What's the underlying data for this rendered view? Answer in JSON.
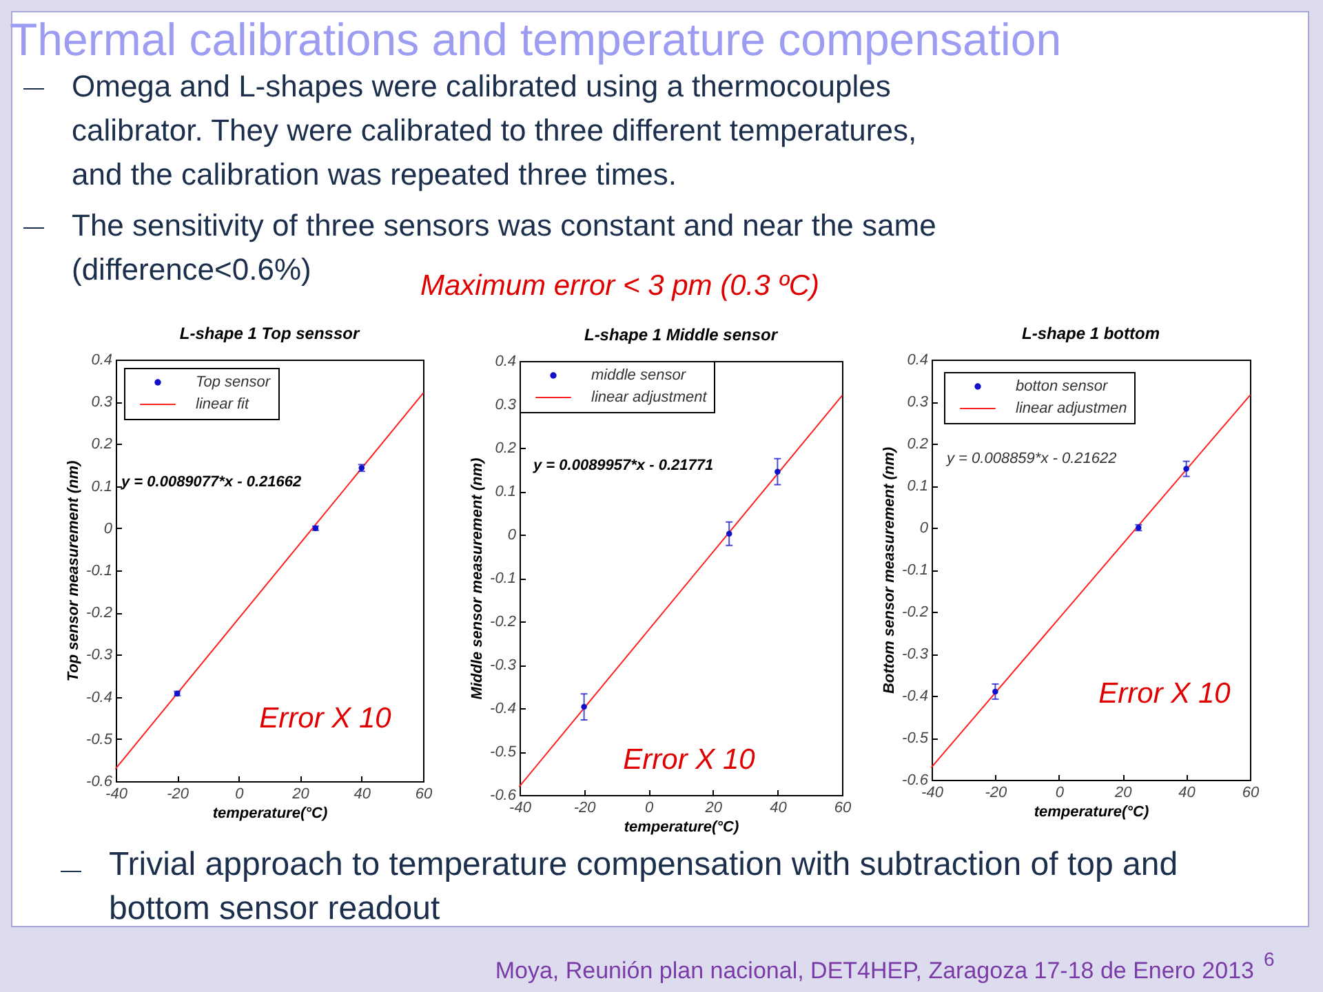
{
  "chart_data": [
    {
      "type": "other",
      "title": "Thermal calibrations and temperature compensation",
      "annotations": [
        "Omega and L-shapes were calibrated using a thermocouples calibrator. They were calibrated to three different temperatures, and the calibration was repeated three times.",
        "The sensitivity of three sensors was constant and near the same (difference<0.6%)",
        "Maximum error < 3 pm (0.3 ºC)"
      ]
    },
    {
      "type": "scatter",
      "title": "L-shape 1 Top senssor",
      "xlabel": "temperature(°C)",
      "ylabel": "Top sensor measurement (nm)",
      "xlim": [
        -40,
        60
      ],
      "xticks": [
        -40,
        -20,
        0,
        20,
        40,
        60
      ],
      "ylim": [
        -0.6,
        0.4
      ],
      "yticks": [
        -0.6,
        -0.5,
        -0.4,
        -0.3,
        -0.2,
        -0.1,
        0,
        0.1,
        0.2,
        0.3,
        0.4
      ],
      "legend": "top left",
      "series": [
        {
          "name": "Top sensor",
          "color": "#1010cc",
          "marker": "circle",
          "x": [
            -20,
            25,
            40
          ],
          "values": [
            -0.392,
            0,
            0.143
          ],
          "errors": [
            0.005,
            0.005,
            0.008
          ]
        },
        {
          "name": "linear fit",
          "type": "line",
          "color": "#ff2020",
          "x": [
            -40,
            60
          ],
          "values": [
            -0.57,
            0.32
          ]
        }
      ],
      "annotations": [
        "y = 0.0089077*x - 0.21662",
        "Error X 10"
      ]
    },
    {
      "type": "scatter",
      "title": "L-shape 1 Middle sensor",
      "xlabel": "temperature(°C)",
      "ylabel": "Middle sensor measurement (nm)",
      "xlim": [
        -40,
        60
      ],
      "xticks": [
        -40,
        -20,
        0,
        20,
        40,
        60
      ],
      "ylim": [
        -0.6,
        0.4
      ],
      "yticks": [
        -0.6,
        -0.5,
        -0.4,
        -0.3,
        -0.2,
        -0.1,
        0,
        0.1,
        0.2,
        0.3,
        0.4
      ],
      "legend": "top left",
      "series": [
        {
          "name": "middle sensor",
          "color": "#1010cc",
          "marker": "circle",
          "x": [
            -20,
            25,
            40
          ],
          "values": [
            -0.397,
            0.002,
            0.145
          ],
          "errors": [
            0.03,
            0.027,
            0.03
          ]
        },
        {
          "name": "linear adjustment",
          "type": "line",
          "color": "#ff2020",
          "x": [
            -40,
            60
          ],
          "values": [
            -0.58,
            0.32
          ]
        }
      ],
      "annotations": [
        "y = 0.0089957*x - 0.21771",
        "Error X 10"
      ]
    },
    {
      "type": "scatter",
      "title": "L-shape 1 bottom",
      "xlabel": "temperature(°C)",
      "ylabel": "Bottom sensor measurement (nm)",
      "xlim": [
        -40,
        60
      ],
      "xticks": [
        -40,
        -20,
        0,
        20,
        40,
        60
      ],
      "ylim": [
        -0.6,
        0.4
      ],
      "yticks": [
        -0.6,
        -0.5,
        -0.4,
        -0.3,
        -0.2,
        -0.1,
        0,
        0.1,
        0.2,
        0.3,
        0.4
      ],
      "legend": "top left",
      "series": [
        {
          "name": "botton sensor",
          "color": "#1010cc",
          "marker": "circle",
          "x": [
            -20,
            25,
            40
          ],
          "values": [
            -0.39,
            0,
            0.14
          ],
          "errors": [
            0.018,
            0.007,
            0.018
          ]
        },
        {
          "name": "linear adjustmen",
          "type": "line",
          "color": "#ff2020",
          "x": [
            -40,
            60
          ],
          "values": [
            -0.57,
            0.315
          ]
        }
      ],
      "annotations": [
        "y = 0.008859*x - 0.21622",
        "Error X 10"
      ]
    },
    {
      "type": "other",
      "annotations": [
        "Trivial approach to temperature compensation with subtraction of top and bottom sensor readout",
        "Moya, Reunión plan nacional, DET4HEP, Zaragoza 17-18 de Enero 2013",
        "6"
      ]
    }
  ]
}
